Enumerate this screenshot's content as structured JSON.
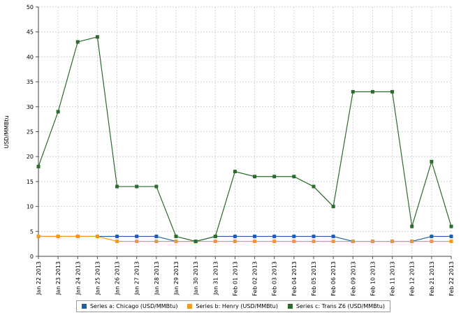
{
  "chart_data": {
    "type": "line",
    "ylabel": "USD/MMBtu",
    "xlabel": "",
    "ylim": [
      0,
      50
    ],
    "yticks": [
      0,
      5,
      10,
      15,
      20,
      25,
      30,
      35,
      40,
      45,
      50
    ],
    "grid": true,
    "legend_position": "bottom",
    "categories": [
      "Jan 22 2013",
      "Jan 23 2013",
      "Jan 24 2013",
      "Jan 25 2013",
      "Jan 26 2013",
      "Jan 27 2013",
      "Jan 28 2013",
      "Jan 29 2013",
      "Jan 30 2013",
      "Jan 31 2013",
      "Feb 01 2013",
      "Feb 02 2013",
      "Feb 03 2013",
      "Feb 04 2013",
      "Feb 05 2013",
      "Feb 06 2013",
      "Feb 09 2013",
      "Feb 10 2013",
      "Feb 11 2013",
      "Feb 12 2013",
      "Feb 21 2013",
      "Feb 22 2013"
    ],
    "series": [
      {
        "name": "Series a: Chicago (USD/MMBtu)",
        "color": "#1f5fa6",
        "values": [
          4,
          4,
          4,
          4,
          4,
          4,
          4,
          3,
          3,
          4,
          4,
          4,
          4,
          4,
          4,
          4,
          3,
          3,
          3,
          3,
          4,
          4
        ]
      },
      {
        "name": "Series b: Henry (USD/MMBtu)",
        "color": "#f39a1e",
        "values": [
          4,
          4,
          4,
          4,
          3,
          3,
          3,
          3,
          3,
          3,
          3,
          3,
          3,
          3,
          3,
          3,
          3,
          3,
          3,
          3,
          3,
          3
        ]
      },
      {
        "name": "Series c: Trans Z6 (USD/MMBtu)",
        "color": "#2d6a2d",
        "values": [
          18,
          29,
          43,
          44,
          14,
          14,
          14,
          4,
          3,
          4,
          17,
          16,
          16,
          16,
          14,
          10,
          33,
          33,
          33,
          6,
          19,
          6
        ]
      }
    ]
  }
}
